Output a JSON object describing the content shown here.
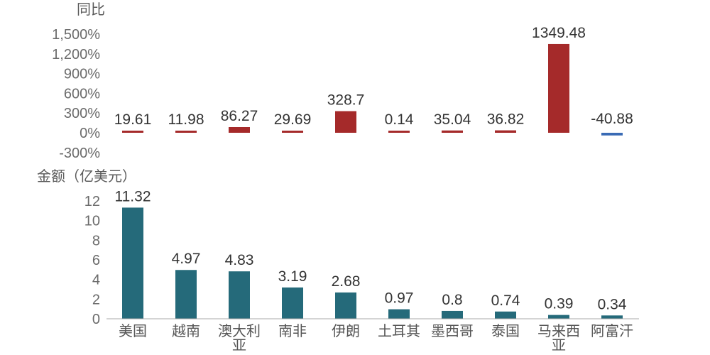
{
  "chart_data": [
    {
      "type": "bar",
      "ylabel": "同比",
      "categories": [
        "美国",
        "越南",
        "澳大利亚",
        "南非",
        "伊朗",
        "土耳其",
        "墨西哥",
        "泰国",
        "马来西亚",
        "阿富汗"
      ],
      "values": [
        19.61,
        11.98,
        86.27,
        29.69,
        328.7,
        0.14,
        35.04,
        36.82,
        1349.48,
        -40.88
      ],
      "data_labels": [
        "19.61",
        "11.98",
        "86.27",
        "29.69",
        "328.7",
        "0.14",
        "35.04",
        "36.82",
        "1349.48",
        "-40.88"
      ],
      "ylim": [
        -300,
        1500
      ],
      "yticks": [
        "1,500%",
        "1,200%",
        "900%",
        "600%",
        "300%",
        "0%",
        "-300%"
      ],
      "ytick_values": [
        1500,
        1200,
        900,
        600,
        300,
        0,
        -300
      ],
      "colors": {
        "positive": "#a52a2a",
        "negative": "#3a6bb5"
      },
      "grid": false
    },
    {
      "type": "bar",
      "ylabel": "金额（亿美元）",
      "categories": [
        "美国",
        "越南",
        "澳大利亚",
        "南非",
        "伊朗",
        "土耳其",
        "墨西哥",
        "泰国",
        "马来西亚",
        "阿富汗"
      ],
      "category_labels": [
        [
          "美国"
        ],
        [
          "越南"
        ],
        [
          "澳大利",
          "亚"
        ],
        [
          "南非"
        ],
        [
          "伊朗"
        ],
        [
          "土耳其"
        ],
        [
          "墨西哥"
        ],
        [
          "泰国"
        ],
        [
          "马来西",
          "亚"
        ],
        [
          "阿富汗"
        ]
      ],
      "values": [
        11.32,
        4.97,
        4.83,
        3.19,
        2.68,
        0.97,
        0.8,
        0.74,
        0.39,
        0.34
      ],
      "data_labels": [
        "11.32",
        "4.97",
        "4.83",
        "3.19",
        "2.68",
        "0.97",
        "0.8",
        "0.74",
        "0.39",
        "0.34"
      ],
      "ylim": [
        0,
        12
      ],
      "yticks": [
        "12",
        "10",
        "8",
        "6",
        "4",
        "2",
        "0"
      ],
      "ytick_values": [
        12,
        10,
        8,
        6,
        4,
        2,
        0
      ],
      "colors": {
        "bar": "#256a7a",
        "axis": "#aaaaaa"
      },
      "grid": false
    }
  ]
}
